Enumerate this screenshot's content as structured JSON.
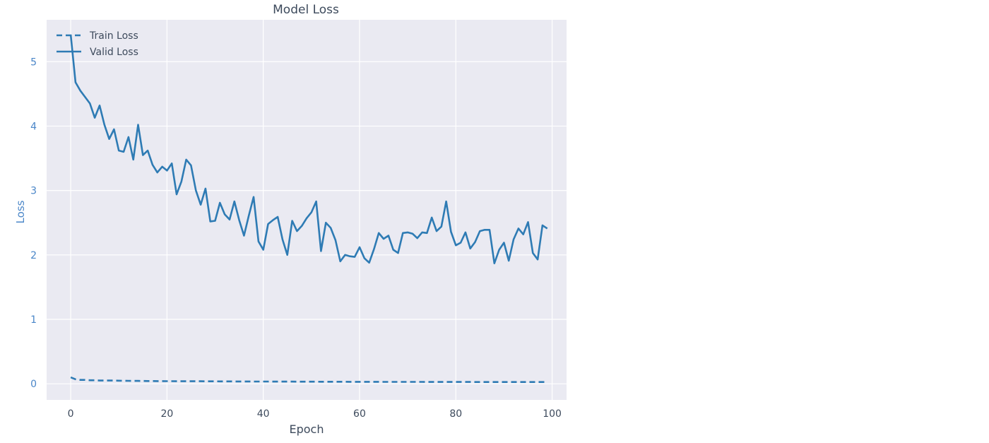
{
  "chart_data": {
    "type": "line",
    "title": "Model Loss",
    "xlabel": "Epoch",
    "ylabel": "Loss",
    "xlim": [
      -5,
      103
    ],
    "ylim": [
      -0.25,
      5.65
    ],
    "xticks": [
      0,
      20,
      40,
      60,
      80,
      100
    ],
    "yticks": [
      0,
      1,
      2,
      3,
      4,
      5
    ],
    "grid": true,
    "legend_position": "top-left",
    "colors": {
      "line": "#2e7bb4",
      "background": "#eaeaf2",
      "grid": "#ffffff"
    },
    "series": [
      {
        "name": "Train Loss",
        "style": "dashed",
        "x": [
          0,
          1,
          2,
          3,
          4,
          5,
          6,
          7,
          8,
          9,
          10,
          11,
          12,
          13,
          14,
          15,
          16,
          17,
          18,
          19,
          20,
          21,
          22,
          23,
          24,
          25,
          26,
          27,
          28,
          29,
          30,
          31,
          32,
          33,
          34,
          35,
          36,
          37,
          38,
          39,
          40,
          41,
          42,
          43,
          44,
          45,
          46,
          47,
          48,
          49,
          50,
          51,
          52,
          53,
          54,
          55,
          56,
          57,
          58,
          59,
          60,
          61,
          62,
          63,
          64,
          65,
          66,
          67,
          68,
          69,
          70,
          71,
          72,
          73,
          74,
          75,
          76,
          77,
          78,
          79,
          80,
          81,
          82,
          83,
          84,
          85,
          86,
          87,
          88,
          89,
          90,
          91,
          92,
          93,
          94,
          95,
          96,
          97,
          98,
          99
        ],
        "values": [
          0.1,
          0.07,
          0.06,
          0.06,
          0.055,
          0.055,
          0.05,
          0.05,
          0.05,
          0.05,
          0.048,
          0.047,
          0.046,
          0.045,
          0.045,
          0.044,
          0.043,
          0.043,
          0.042,
          0.042,
          0.041,
          0.041,
          0.04,
          0.04,
          0.04,
          0.039,
          0.039,
          0.039,
          0.038,
          0.038,
          0.038,
          0.037,
          0.037,
          0.037,
          0.036,
          0.036,
          0.036,
          0.036,
          0.035,
          0.035,
          0.035,
          0.035,
          0.034,
          0.034,
          0.034,
          0.034,
          0.034,
          0.033,
          0.033,
          0.033,
          0.033,
          0.033,
          0.032,
          0.032,
          0.032,
          0.032,
          0.032,
          0.032,
          0.031,
          0.031,
          0.031,
          0.031,
          0.031,
          0.031,
          0.031,
          0.03,
          0.03,
          0.03,
          0.03,
          0.03,
          0.03,
          0.03,
          0.03,
          0.03,
          0.029,
          0.029,
          0.029,
          0.029,
          0.029,
          0.029,
          0.029,
          0.029,
          0.029,
          0.029,
          0.028,
          0.028,
          0.028,
          0.028,
          0.028,
          0.028,
          0.028,
          0.028,
          0.028,
          0.028,
          0.028,
          0.028,
          0.027,
          0.027,
          0.027,
          0.027
        ]
      },
      {
        "name": "Valid Loss",
        "style": "solid",
        "x": [
          0,
          1,
          2,
          3,
          4,
          5,
          6,
          7,
          8,
          9,
          10,
          11,
          12,
          13,
          14,
          15,
          16,
          17,
          18,
          19,
          20,
          21,
          22,
          23,
          24,
          25,
          26,
          27,
          28,
          29,
          30,
          31,
          32,
          33,
          34,
          35,
          36,
          37,
          38,
          39,
          40,
          41,
          42,
          43,
          44,
          45,
          46,
          47,
          48,
          49,
          50,
          51,
          52,
          53,
          54,
          55,
          56,
          57,
          58,
          59,
          60,
          61,
          62,
          63,
          64,
          65,
          66,
          67,
          68,
          69,
          70,
          71,
          72,
          73,
          74,
          75,
          76,
          77,
          78,
          79,
          80,
          81,
          82,
          83,
          84,
          85,
          86,
          87,
          88,
          89,
          90,
          91,
          92,
          93,
          94,
          95,
          96,
          97,
          98,
          99
        ],
        "values": [
          5.42,
          4.68,
          4.55,
          4.45,
          4.35,
          4.13,
          4.32,
          4.02,
          3.8,
          3.95,
          3.62,
          3.6,
          3.83,
          3.48,
          4.02,
          3.55,
          3.62,
          3.4,
          3.28,
          3.37,
          3.31,
          3.42,
          2.94,
          3.14,
          3.48,
          3.39,
          3.0,
          2.78,
          3.03,
          2.52,
          2.53,
          2.81,
          2.63,
          2.55,
          2.83,
          2.54,
          2.3,
          2.61,
          2.9,
          2.21,
          2.08,
          2.48,
          2.54,
          2.59,
          2.24,
          2.0,
          2.53,
          2.37,
          2.45,
          2.57,
          2.66,
          2.83,
          2.06,
          2.5,
          2.42,
          2.23,
          1.9,
          2.0,
          1.98,
          1.97,
          2.12,
          1.95,
          1.88,
          2.09,
          2.34,
          2.25,
          2.3,
          2.08,
          2.03,
          2.34,
          2.35,
          2.33,
          2.26,
          2.35,
          2.34,
          2.58,
          2.37,
          2.44,
          2.83,
          2.36,
          2.15,
          2.19,
          2.35,
          2.1,
          2.2,
          2.37,
          2.39,
          2.39,
          1.87,
          2.08,
          2.19,
          1.91,
          2.24,
          2.41,
          2.32,
          2.51,
          2.03,
          1.93,
          2.46,
          2.41
        ]
      }
    ]
  }
}
